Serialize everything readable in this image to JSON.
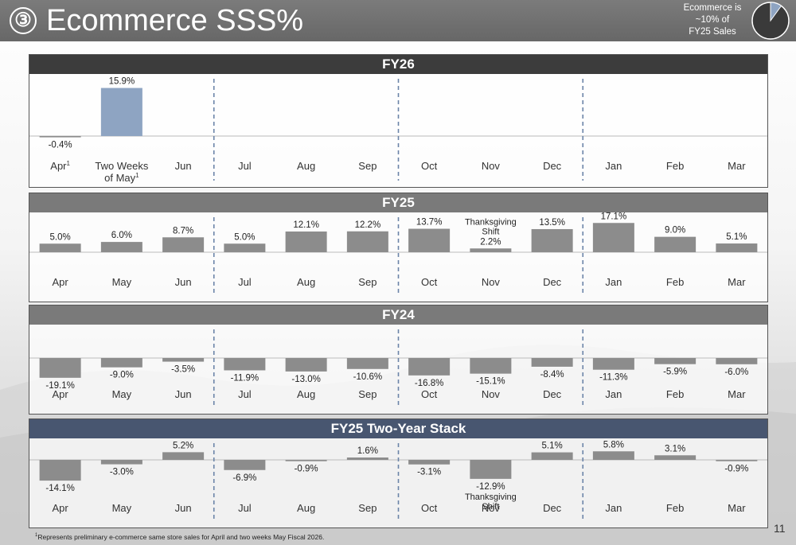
{
  "header": {
    "title_icon": "③",
    "title": "Ecommerce SSS%",
    "note": "Ecommerce is\n~10% of\nFY25 Sales",
    "pie_share": 0.1
  },
  "colors": {
    "bar_gray": "#8c8c8c",
    "bar_blue": "#8ea4c2",
    "divider": "#6b84a8",
    "dark_header": "#3c3c3c",
    "stack_header": "#485670"
  },
  "chart_data": [
    {
      "type": "bar",
      "title": "FY26",
      "categories": [
        "Apr¹",
        "Two Weeks\nof May¹",
        "Jun",
        "Jul",
        "Aug",
        "Sep",
        "Oct",
        "Nov",
        "Dec",
        "Jan",
        "Feb",
        "Mar"
      ],
      "values": [
        -0.4,
        15.9,
        null,
        null,
        null,
        null,
        null,
        null,
        null,
        null,
        null,
        null
      ],
      "data_labels": [
        "-0.4%",
        "15.9%",
        "",
        "",
        "",
        "",
        "",
        "",
        "",
        "",
        "",
        ""
      ],
      "highlight_index": 1,
      "quarter_dividers_after": [
        2,
        5,
        8
      ]
    },
    {
      "type": "bar",
      "title": "FY25",
      "categories": [
        "Apr",
        "May",
        "Jun",
        "Jul",
        "Aug",
        "Sep",
        "Oct",
        "Nov",
        "Dec",
        "Jan",
        "Feb",
        "Mar"
      ],
      "values": [
        5.0,
        6.0,
        8.7,
        5.0,
        12.1,
        12.2,
        13.7,
        2.2,
        13.5,
        17.1,
        9.0,
        5.1
      ],
      "data_labels": [
        "5.0%",
        "6.0%",
        "8.7%",
        "5.0%",
        "12.1%",
        "12.2%",
        "13.7%",
        "2.2%",
        "13.5%",
        "17.1%",
        "9.0%",
        "5.1%"
      ],
      "annotations": [
        {
          "index": 7,
          "text": "Thanksgiving\nShift"
        }
      ],
      "quarter_dividers_after": [
        2,
        5,
        8
      ]
    },
    {
      "type": "bar",
      "title": "FY24",
      "categories": [
        "Apr",
        "May",
        "Jun",
        "Jul",
        "Aug",
        "Sep",
        "Oct",
        "Nov",
        "Dec",
        "Jan",
        "Feb",
        "Mar"
      ],
      "values": [
        -19.1,
        -9.0,
        -3.5,
        -11.9,
        -13.0,
        -10.6,
        -16.8,
        -15.1,
        -8.4,
        -11.3,
        -5.9,
        -6.0
      ],
      "data_labels": [
        "-19.1%",
        "-9.0%",
        "-3.5%",
        "-11.9%",
        "-13.0%",
        "-10.6%",
        "-16.8%",
        "-15.1%",
        "-8.4%",
        "-11.3%",
        "-5.9%",
        "-6.0%"
      ],
      "quarter_dividers_after": [
        2,
        5,
        8
      ]
    },
    {
      "type": "bar",
      "title": "FY25 Two-Year Stack",
      "categories": [
        "Apr",
        "May",
        "Jun",
        "Jul",
        "Aug",
        "Sep",
        "Oct",
        "Nov",
        "Dec",
        "Jan",
        "Feb",
        "Mar"
      ],
      "values": [
        -14.1,
        -3.0,
        5.2,
        -6.9,
        -0.9,
        1.6,
        -3.1,
        -12.9,
        5.1,
        5.8,
        3.1,
        -0.9
      ],
      "data_labels": [
        "-14.1%",
        "-3.0%",
        "5.2%",
        "-6.9%",
        "-0.9%",
        "1.6%",
        "-3.1%",
        "-12.9%",
        "5.1%",
        "5.8%",
        "3.1%",
        "-0.9%"
      ],
      "annotations": [
        {
          "index": 7,
          "text": "Thanksgiving\nShift"
        }
      ],
      "quarter_dividers_after": [
        2,
        5,
        8
      ]
    }
  ],
  "footnote": {
    "marker": "1",
    "text": "Represents preliminary e-commerce same store sales for April and two weeks May Fiscal 2026."
  },
  "page_number": "11"
}
